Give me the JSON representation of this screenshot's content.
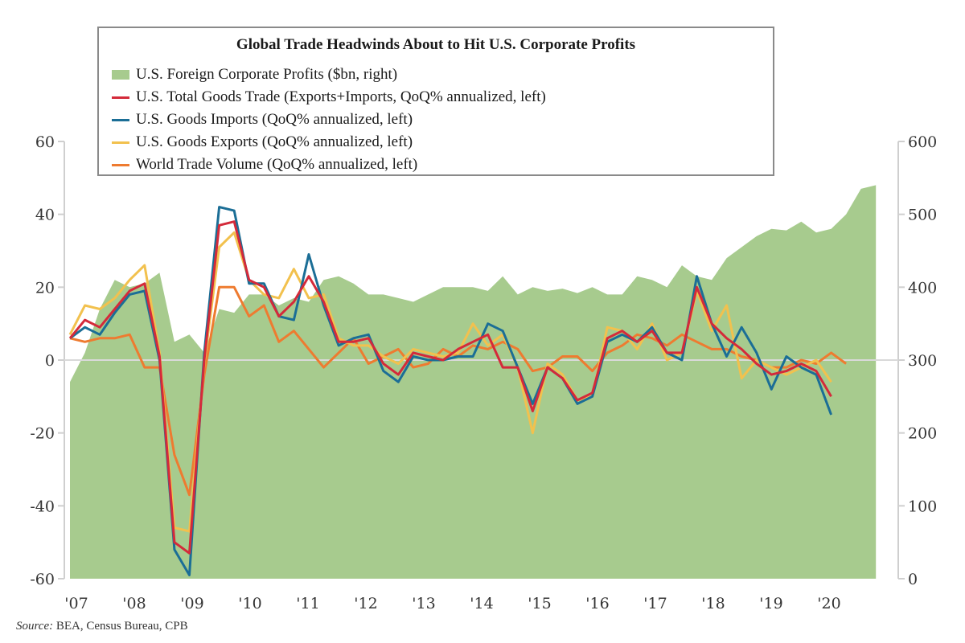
{
  "chart_data": {
    "type": "line",
    "title": "Global Trade Headwinds About to Hit U.S. Corporate Profits",
    "source_label": "Source:",
    "source_text": "BEA, Census Bureau, CPB",
    "x_tick_labels": [
      "'07",
      "'08",
      "'09",
      "'10",
      "'11",
      "'12",
      "'13",
      "'14",
      "'15",
      "'16",
      "'17",
      "'18",
      "'19",
      "'20"
    ],
    "left_axis": {
      "ylim": [
        -60,
        60
      ],
      "ticks": [
        "60",
        "40",
        "20",
        "0",
        "-20",
        "-40",
        "-60"
      ]
    },
    "right_axis": {
      "ylim": [
        0,
        600
      ],
      "ticks": [
        "600",
        "500",
        "400",
        "300",
        "200",
        "100",
        "0"
      ]
    },
    "x_start": "2007Q1",
    "series": [
      {
        "name": "U.S. Foreign Corporate Profits ($bn, right)",
        "type": "area",
        "axis": "right",
        "color": "#a7cb8e",
        "values": [
          270,
          310,
          370,
          410,
          400,
          405,
          420,
          325,
          335,
          310,
          370,
          365,
          390,
          390,
          375,
          385,
          380,
          410,
          415,
          405,
          390,
          390,
          385,
          380,
          390,
          400,
          400,
          400,
          395,
          415,
          390,
          400,
          395,
          398,
          392,
          400,
          390,
          390,
          415,
          410,
          400,
          430,
          415,
          410,
          440,
          455,
          470,
          480,
          478,
          490,
          475,
          480,
          500,
          535,
          540
        ]
      },
      {
        "name": "U.S. Total Goods Trade (Exports+Imports, QoQ% annualized, left)",
        "type": "line",
        "axis": "left",
        "color": "#d42a3a",
        "values": [
          6,
          11,
          9,
          14,
          19,
          21,
          1,
          -50,
          -53,
          0,
          37,
          38,
          22,
          20,
          12,
          16,
          23,
          16,
          5,
          5,
          6,
          -1,
          -4,
          2,
          1,
          0,
          3,
          5,
          7,
          -2,
          -2,
          -14,
          -2,
          -5,
          -11,
          -9,
          6,
          8,
          5,
          8,
          2,
          2,
          20,
          10,
          6,
          3,
          -1,
          -4,
          -3,
          -1,
          -3,
          -10
        ]
      },
      {
        "name": "U.S. Goods Imports (QoQ% annualized, left)",
        "type": "line",
        "axis": "left",
        "color": "#1b6e96",
        "values": [
          6,
          9,
          7,
          13,
          18,
          19,
          0,
          -52,
          -59,
          2,
          42,
          41,
          21,
          21,
          12,
          11,
          29,
          15,
          4,
          6,
          7,
          -3,
          -6,
          1,
          0,
          0,
          1,
          1,
          10,
          8,
          -2,
          -12,
          -2,
          -5,
          -12,
          -10,
          5,
          7,
          5,
          9,
          2,
          0,
          23,
          10,
          1,
          9,
          2,
          -8,
          1,
          -2,
          -4,
          -15
        ]
      },
      {
        "name": "U.S. Goods Exports (QoQ% annualized, left)",
        "type": "line",
        "axis": "left",
        "color": "#f2c14e",
        "values": [
          7,
          15,
          14,
          17,
          22,
          26,
          2,
          -46,
          -47,
          -1,
          31,
          35,
          22,
          18,
          17,
          25,
          17,
          18,
          6,
          4,
          4,
          1,
          -1,
          3,
          2,
          1,
          2,
          10,
          4,
          7,
          -2,
          -20,
          -1,
          -4,
          -11,
          -10,
          9,
          8,
          3,
          10,
          0,
          2,
          19,
          8,
          15,
          -5,
          0,
          -2,
          -4,
          -2,
          0,
          -6
        ]
      },
      {
        "name": "World Trade Volume (QoQ% annualized, left)",
        "type": "line",
        "axis": "left",
        "color": "#ee7b30",
        "values": [
          6,
          5,
          6,
          6,
          7,
          -2,
          -2,
          -26,
          -37,
          -4,
          20,
          20,
          12,
          15,
          5,
          8,
          3,
          -2,
          2,
          6,
          -1,
          1,
          3,
          -2,
          -1,
          3,
          1,
          4,
          3,
          5,
          3,
          -3,
          -2,
          1,
          1,
          -3,
          2,
          4,
          7,
          6,
          4,
          7,
          5,
          3,
          3,
          1,
          0,
          -2,
          -2,
          0,
          -1,
          2,
          -1
        ]
      }
    ]
  }
}
